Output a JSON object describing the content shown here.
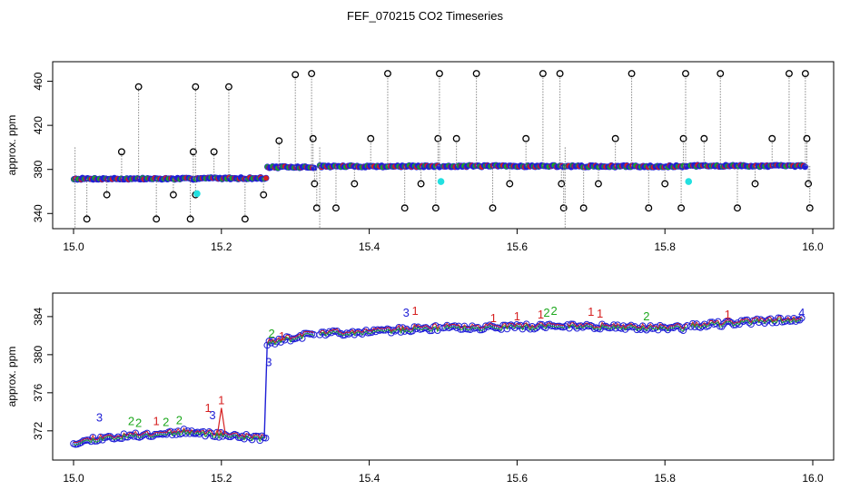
{
  "title": "FEF_070215  CO2 Timeseries",
  "colors": {
    "axis": "#000000",
    "drop_line": "#888888",
    "outlier_ring": "#000000",
    "series_blue": "#1f1fd6",
    "series_green": "#1ea81e",
    "series_red": "#d61f1f",
    "cyan_marker": "#22e0e0"
  },
  "chart_data": [
    {
      "type": "scatter",
      "name": "upper-panel",
      "ylabel": "approx. ppm",
      "xlim": [
        15.0,
        16.0
      ],
      "ylim": [
        332,
        472
      ],
      "x_ticks": [
        15.0,
        15.2,
        15.4,
        15.6,
        15.8,
        16.0
      ],
      "x_tick_labels": [
        "15.0",
        "15.2",
        "15.4",
        "15.6",
        "15.8",
        "16.0"
      ],
      "y_ticks": [
        340,
        380,
        420,
        460
      ],
      "y_tick_labels": [
        "340",
        "380",
        "420",
        "460"
      ],
      "baseline_segments": [
        {
          "x_start": 15.0,
          "x_end": 15.165,
          "y": 371.5
        },
        {
          "x_start": 15.165,
          "x_end": 15.26,
          "y": 372.0
        },
        {
          "x_start": 15.262,
          "x_end": 15.325,
          "y": 382.0
        },
        {
          "x_start": 15.333,
          "x_end": 15.495,
          "y": 382.8
        },
        {
          "x_start": 15.5,
          "x_end": 15.665,
          "y": 383.0
        },
        {
          "x_start": 15.668,
          "x_end": 15.83,
          "y": 382.8
        },
        {
          "x_start": 15.835,
          "x_end": 15.99,
          "y": 383.2
        }
      ],
      "outliers": [
        {
          "x": 15.018,
          "y": 335
        },
        {
          "x": 15.045,
          "y": 357
        },
        {
          "x": 15.065,
          "y": 396
        },
        {
          "x": 15.088,
          "y": 455
        },
        {
          "x": 15.112,
          "y": 335
        },
        {
          "x": 15.135,
          "y": 357
        },
        {
          "x": 15.158,
          "y": 335
        },
        {
          "x": 15.162,
          "y": 396
        },
        {
          "x": 15.165,
          "y": 455
        },
        {
          "x": 15.165,
          "y": 357
        },
        {
          "x": 15.19,
          "y": 396
        },
        {
          "x": 15.21,
          "y": 455
        },
        {
          "x": 15.232,
          "y": 335
        },
        {
          "x": 15.257,
          "y": 357
        },
        {
          "x": 15.278,
          "y": 406
        },
        {
          "x": 15.3,
          "y": 466
        },
        {
          "x": 15.322,
          "y": 467
        },
        {
          "x": 15.324,
          "y": 408
        },
        {
          "x": 15.326,
          "y": 367
        },
        {
          "x": 15.329,
          "y": 345
        },
        {
          "x": 15.355,
          "y": 345
        },
        {
          "x": 15.38,
          "y": 367
        },
        {
          "x": 15.402,
          "y": 408
        },
        {
          "x": 15.425,
          "y": 467
        },
        {
          "x": 15.448,
          "y": 345
        },
        {
          "x": 15.47,
          "y": 367
        },
        {
          "x": 15.49,
          "y": 345
        },
        {
          "x": 15.493,
          "y": 408
        },
        {
          "x": 15.495,
          "y": 467
        },
        {
          "x": 15.518,
          "y": 408
        },
        {
          "x": 15.545,
          "y": 467
        },
        {
          "x": 15.567,
          "y": 345
        },
        {
          "x": 15.59,
          "y": 367
        },
        {
          "x": 15.612,
          "y": 408
        },
        {
          "x": 15.635,
          "y": 467
        },
        {
          "x": 15.658,
          "y": 467
        },
        {
          "x": 15.66,
          "y": 367
        },
        {
          "x": 15.663,
          "y": 345
        },
        {
          "x": 15.69,
          "y": 345
        },
        {
          "x": 15.71,
          "y": 367
        },
        {
          "x": 15.733,
          "y": 408
        },
        {
          "x": 15.755,
          "y": 467
        },
        {
          "x": 15.778,
          "y": 345
        },
        {
          "x": 15.8,
          "y": 367
        },
        {
          "x": 15.822,
          "y": 345
        },
        {
          "x": 15.825,
          "y": 408
        },
        {
          "x": 15.828,
          "y": 467
        },
        {
          "x": 15.853,
          "y": 408
        },
        {
          "x": 15.875,
          "y": 467
        },
        {
          "x": 15.898,
          "y": 345
        },
        {
          "x": 15.922,
          "y": 367
        },
        {
          "x": 15.945,
          "y": 408
        },
        {
          "x": 15.968,
          "y": 467
        },
        {
          "x": 15.99,
          "y": 467
        },
        {
          "x": 15.992,
          "y": 408
        },
        {
          "x": 15.994,
          "y": 367
        },
        {
          "x": 15.996,
          "y": 345
        }
      ],
      "cyan_points": [
        {
          "x": 15.167,
          "y": 358
        },
        {
          "x": 15.497,
          "y": 369
        },
        {
          "x": 15.832,
          "y": 369
        }
      ]
    },
    {
      "type": "scatter",
      "name": "lower-panel",
      "ylabel": "approx. ppm",
      "xlim": [
        15.0,
        16.0
      ],
      "ylim": [
        369.6,
        385.8
      ],
      "x_ticks": [
        15.0,
        15.2,
        15.4,
        15.6,
        15.8,
        16.0
      ],
      "x_tick_labels": [
        "15.0",
        "15.2",
        "15.4",
        "15.6",
        "15.8",
        "16.0"
      ],
      "y_ticks": [
        372,
        376,
        380,
        384
      ],
      "y_tick_labels": [
        "372",
        "376",
        "380",
        "384"
      ],
      "segments": [
        {
          "x_start": 15.0,
          "x_end": 15.165,
          "y_start": 371.0,
          "y_end": 372.0
        },
        {
          "x_start": 15.165,
          "x_end": 15.26,
          "y_start": 371.8,
          "y_end": 371.2
        },
        {
          "x_start": 15.262,
          "x_end": 15.325,
          "y_start": 381.2,
          "y_end": 382.2
        },
        {
          "x_start": 15.333,
          "x_end": 15.495,
          "y_start": 382.2,
          "y_end": 382.8
        },
        {
          "x_start": 15.5,
          "x_end": 15.665,
          "y_start": 382.8,
          "y_end": 383.0
        },
        {
          "x_start": 15.668,
          "x_end": 15.83,
          "y_start": 383.0,
          "y_end": 382.8
        },
        {
          "x_start": 15.835,
          "x_end": 15.985,
          "y_start": 383.0,
          "y_end": 383.8
        }
      ],
      "labels": [
        {
          "x": 15.035,
          "y": 373.0,
          "text": "3"
        },
        {
          "x": 15.078,
          "y": 372.6,
          "text": "2"
        },
        {
          "x": 15.088,
          "y": 372.4,
          "text": "2"
        },
        {
          "x": 15.112,
          "y": 372.6,
          "text": "1"
        },
        {
          "x": 15.125,
          "y": 372.5,
          "text": "2"
        },
        {
          "x": 15.143,
          "y": 372.7,
          "text": "2"
        },
        {
          "x": 15.182,
          "y": 374.0,
          "text": "1"
        },
        {
          "x": 15.188,
          "y": 373.2,
          "text": "3"
        },
        {
          "x": 15.2,
          "y": 374.8,
          "text": "1"
        },
        {
          "x": 15.264,
          "y": 378.8,
          "text": "3"
        },
        {
          "x": 15.268,
          "y": 381.8,
          "text": "2"
        },
        {
          "x": 15.282,
          "y": 381.5,
          "text": "1"
        },
        {
          "x": 15.45,
          "y": 384.0,
          "text": "3"
        },
        {
          "x": 15.462,
          "y": 384.2,
          "text": "1"
        },
        {
          "x": 15.568,
          "y": 383.4,
          "text": "1"
        },
        {
          "x": 15.6,
          "y": 383.6,
          "text": "1"
        },
        {
          "x": 15.632,
          "y": 383.8,
          "text": "1"
        },
        {
          "x": 15.64,
          "y": 384.0,
          "text": "2"
        },
        {
          "x": 15.65,
          "y": 384.2,
          "text": "2"
        },
        {
          "x": 15.7,
          "y": 384.1,
          "text": "1"
        },
        {
          "x": 15.712,
          "y": 383.9,
          "text": "1"
        },
        {
          "x": 15.775,
          "y": 383.6,
          "text": "2"
        },
        {
          "x": 15.885,
          "y": 383.8,
          "text": "1"
        },
        {
          "x": 15.985,
          "y": 384.0,
          "text": "4"
        }
      ]
    }
  ]
}
